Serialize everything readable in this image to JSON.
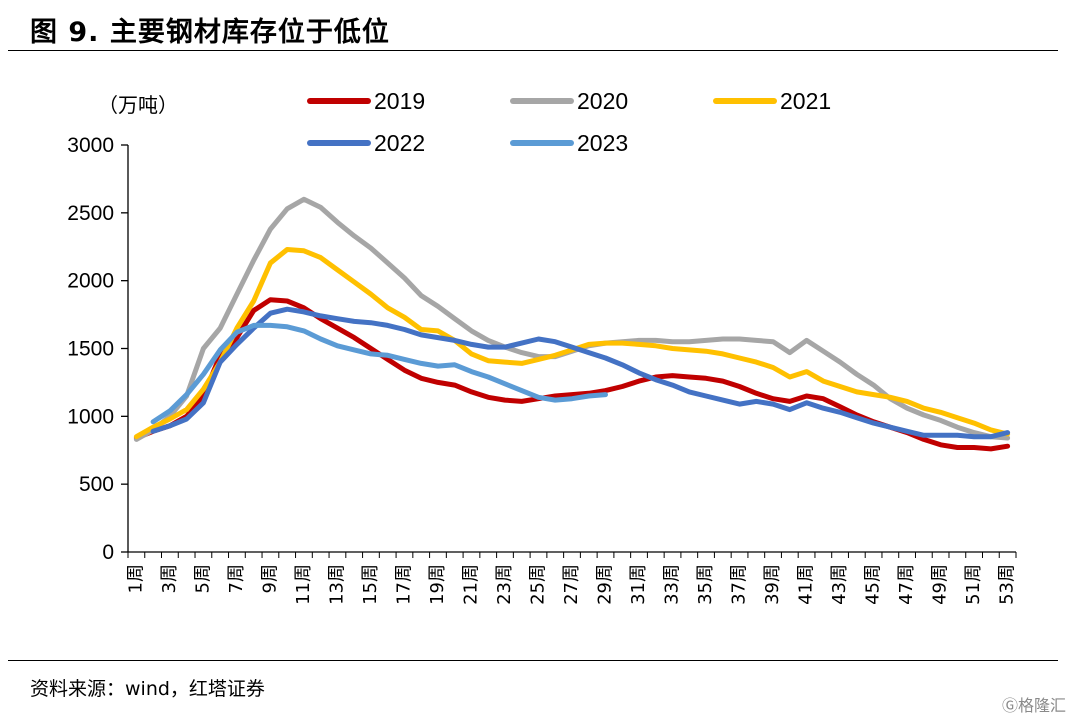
{
  "figure": {
    "title": "图 9. 主要钢材库存位于低位",
    "source": "资料来源：wind，红塔证券",
    "watermark": "格隆汇"
  },
  "chart_data": {
    "type": "line",
    "title": "",
    "ylabel": "（万吨）",
    "xlabel": "",
    "ylim": [
      0,
      3000
    ],
    "yticks": [
      0,
      500,
      1000,
      1500,
      2000,
      2500,
      3000
    ],
    "grid": false,
    "legend_placement": "top",
    "x": [
      1,
      2,
      3,
      4,
      5,
      6,
      7,
      8,
      9,
      10,
      11,
      12,
      13,
      14,
      15,
      16,
      17,
      18,
      19,
      20,
      21,
      22,
      23,
      24,
      25,
      26,
      27,
      28,
      29,
      30,
      31,
      32,
      33,
      34,
      35,
      36,
      37,
      38,
      39,
      40,
      41,
      42,
      43,
      44,
      45,
      46,
      47,
      48,
      49,
      50,
      51,
      52,
      53
    ],
    "x_tick_labels": [
      "1周",
      "3周",
      "5周",
      "7周",
      "9周",
      "11周",
      "13周",
      "15周",
      "17周",
      "19周",
      "21周",
      "23周",
      "25周",
      "27周",
      "29周",
      "31周",
      "33周",
      "35周",
      "37周",
      "39周",
      "41周",
      "43周",
      "45周",
      "47周",
      "49周",
      "51周",
      "53周"
    ],
    "series": [
      {
        "name": "2019",
        "color": "#c00000",
        "values": [
          840,
          890,
          930,
          1000,
          1150,
          1450,
          1580,
          1780,
          1860,
          1850,
          1800,
          1720,
          1650,
          1580,
          1500,
          1420,
          1340,
          1280,
          1250,
          1230,
          1180,
          1140,
          1120,
          1110,
          1130,
          1150,
          1160,
          1170,
          1190,
          1220,
          1260,
          1290,
          1300,
          1290,
          1280,
          1260,
          1220,
          1170,
          1130,
          1110,
          1150,
          1130,
          1070,
          1010,
          960,
          920,
          880,
          830,
          790,
          770,
          770,
          760,
          780
        ]
      },
      {
        "name": "2020",
        "color": "#a6a6a6",
        "values": [
          830,
          900,
          1000,
          1150,
          1500,
          1650,
          1900,
          2150,
          2380,
          2530,
          2600,
          2540,
          2430,
          2330,
          2240,
          2130,
          2020,
          1890,
          1810,
          1720,
          1630,
          1560,
          1510,
          1470,
          1440,
          1440,
          1480,
          1520,
          1540,
          1550,
          1560,
          1560,
          1550,
          1550,
          1560,
          1570,
          1570,
          1560,
          1550,
          1470,
          1560,
          1480,
          1400,
          1310,
          1230,
          1130,
          1060,
          1010,
          970,
          920,
          880,
          850,
          840
        ]
      },
      {
        "name": "2021",
        "color": "#ffc000",
        "values": [
          850,
          920,
          980,
          1050,
          1200,
          1400,
          1650,
          1850,
          2130,
          2230,
          2220,
          2170,
          2080,
          1990,
          1900,
          1800,
          1730,
          1640,
          1630,
          1560,
          1460,
          1410,
          1400,
          1390,
          1420,
          1450,
          1490,
          1530,
          1540,
          1540,
          1530,
          1520,
          1500,
          1490,
          1480,
          1460,
          1430,
          1400,
          1360,
          1290,
          1330,
          1260,
          1220,
          1180,
          1160,
          1140,
          1110,
          1060,
          1030,
          990,
          950,
          900,
          870
        ]
      },
      {
        "name": "2022",
        "color": "#4472c4",
        "values": [
          null,
          890,
          930,
          980,
          1100,
          1400,
          1530,
          1650,
          1760,
          1790,
          1770,
          1740,
          1720,
          1700,
          1690,
          1670,
          1640,
          1600,
          1580,
          1560,
          1530,
          1510,
          1510,
          1540,
          1570,
          1550,
          1510,
          1470,
          1430,
          1380,
          1320,
          1270,
          1230,
          1180,
          1150,
          1120,
          1090,
          1110,
          1090,
          1050,
          1100,
          1060,
          1030,
          990,
          950,
          920,
          890,
          860,
          860,
          860,
          850,
          850,
          880
        ]
      },
      {
        "name": "2023",
        "color": "#5b9bd5",
        "values": [
          null,
          960,
          1040,
          1160,
          1310,
          1490,
          1620,
          1670,
          1670,
          1660,
          1630,
          1570,
          1520,
          1490,
          1460,
          1450,
          1420,
          1390,
          1370,
          1380,
          1330,
          1290,
          1240,
          1190,
          1140,
          1120,
          1130,
          1150,
          1160,
          null,
          null,
          null,
          null,
          null,
          null,
          null,
          null,
          null,
          null,
          null,
          null,
          null,
          null,
          null,
          null,
          null,
          null,
          null,
          null,
          null,
          null,
          null,
          null
        ]
      }
    ]
  }
}
